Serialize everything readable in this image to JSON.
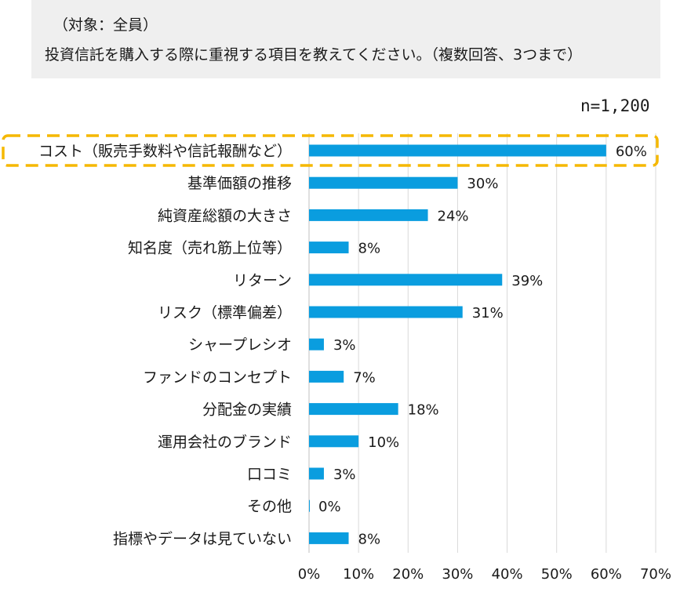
{
  "question": {
    "line1": "（対象：全員）",
    "line2": "投資信託を購入する際に重視する項目を教えてください。（複数回答、3つまで）"
  },
  "sample": "n=1,200",
  "chart_data": {
    "type": "bar",
    "orientation": "horizontal",
    "categories": [
      "コスト（販売手数料や信託報酬など）",
      "基準価額の推移",
      "純資産総額の大きさ",
      "知名度（売れ筋上位等）",
      "リターン",
      "リスク（標準偏差）",
      "シャープレシオ",
      "ファンドのコンセプト",
      "分配金の実績",
      "運用会社のブランド",
      "口コミ",
      "その他",
      "指標やデータは見ていない"
    ],
    "values": [
      60,
      30,
      24,
      8,
      39,
      31,
      3,
      7,
      18,
      10,
      3,
      0,
      8
    ],
    "value_labels": [
      "60%",
      "30%",
      "24%",
      "8%",
      "39%",
      "31%",
      "3%",
      "7%",
      "18%",
      "10%",
      "3%",
      "0%",
      "8%"
    ],
    "xlim": [
      0,
      70
    ],
    "xticks": [
      0,
      10,
      20,
      30,
      40,
      50,
      60,
      70
    ],
    "xtick_labels": [
      "0%",
      "10%",
      "20%",
      "30%",
      "40%",
      "50%",
      "60%",
      "70%"
    ],
    "highlight_index": 0,
    "bar_color": "#0a9ddf",
    "highlight_color": "#f5b800",
    "grid": true
  }
}
